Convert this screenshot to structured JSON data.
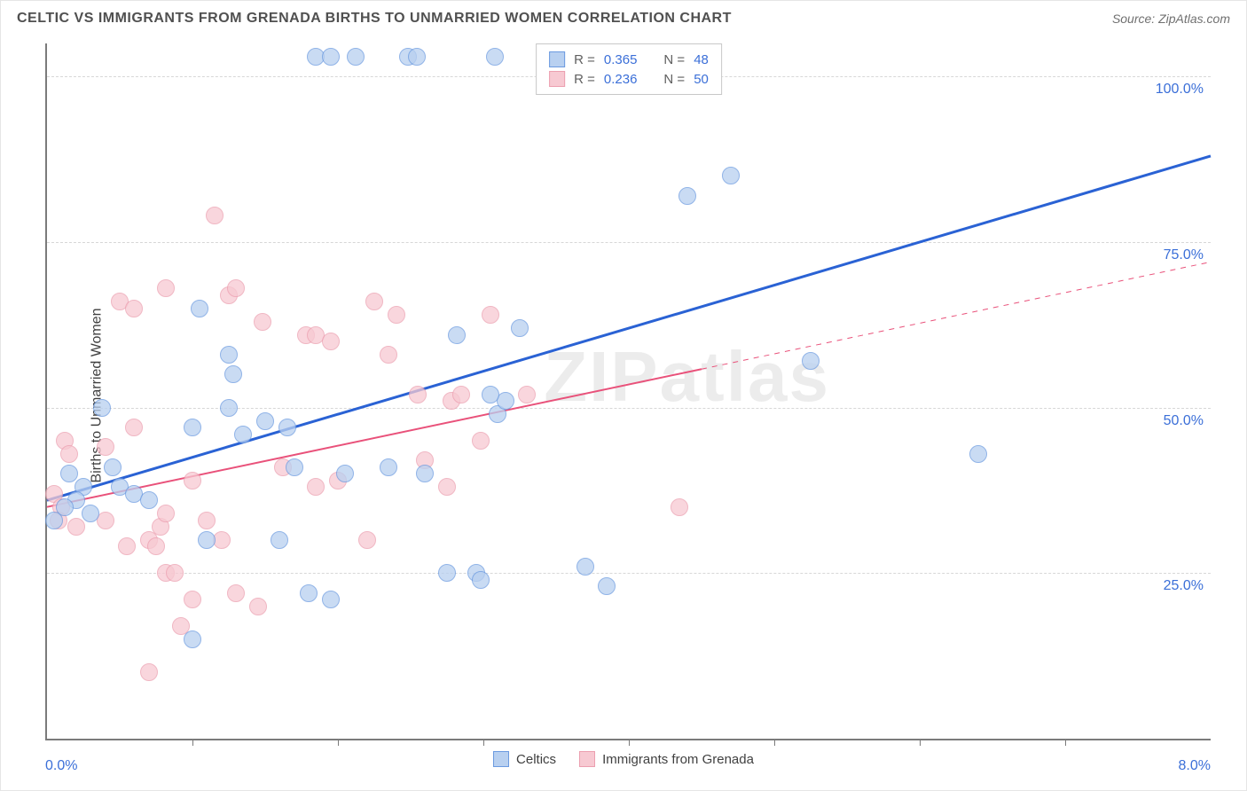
{
  "title": "CELTIC VS IMMIGRANTS FROM GRENADA BIRTHS TO UNMARRIED WOMEN CORRELATION CHART",
  "source": "Source: ZipAtlas.com",
  "watermark": "ZIPatlas",
  "axis": {
    "y_title": "Births to Unmarried Women",
    "x_min_label": "0.0%",
    "x_max_label": "8.0%",
    "xlim": [
      0,
      8
    ],
    "ylim": [
      0,
      105
    ],
    "y_gridlines": [
      {
        "value": 25,
        "label": "25.0%"
      },
      {
        "value": 50,
        "label": "50.0%"
      },
      {
        "value": 75,
        "label": "75.0%"
      },
      {
        "value": 100,
        "label": "100.0%"
      }
    ],
    "x_ticks": [
      1,
      2,
      3,
      4,
      5,
      6,
      7
    ],
    "label_color": "#3b6fd8"
  },
  "colors": {
    "series_a_fill": "#b8d0f0",
    "series_a_stroke": "#6b9ae0",
    "series_b_fill": "#f7c9d2",
    "series_b_stroke": "#ec9fb0",
    "line_a": "#2a62d4",
    "line_b": "#e9517a",
    "grid": "#d7d7d7",
    "axis": "#7b7b7b"
  },
  "legend_top": {
    "rows": [
      {
        "swatch": "a",
        "r_label": "R =",
        "r_value": "0.365",
        "n_label": "N =",
        "n_value": "48"
      },
      {
        "swatch": "b",
        "r_label": "R =",
        "r_value": "0.236",
        "n_label": "N =",
        "n_value": "50"
      }
    ]
  },
  "legend_bottom": {
    "items": [
      {
        "swatch": "a",
        "label": "Celtics"
      },
      {
        "swatch": "b",
        "label": "Immigrants from Grenada"
      }
    ]
  },
  "trend_lines": {
    "a": {
      "x1": 0,
      "y1": 36,
      "x2": 8,
      "y2": 88,
      "color_key": "line_a",
      "width": 3
    },
    "b": {
      "x1": 0,
      "y1": 35,
      "x2": 8,
      "y2": 72,
      "color_key": "line_b",
      "width": 2,
      "solid_to_x": 4.5,
      "dash_from_x": 4.5
    }
  },
  "series": {
    "a": [
      [
        1.85,
        103
      ],
      [
        1.95,
        103
      ],
      [
        2.12,
        103
      ],
      [
        2.48,
        103
      ],
      [
        2.54,
        103
      ],
      [
        3.08,
        103
      ],
      [
        4.7,
        85
      ],
      [
        4.4,
        82
      ],
      [
        1.05,
        65
      ],
      [
        1.28,
        55
      ],
      [
        1.25,
        58
      ],
      [
        2.82,
        61
      ],
      [
        3.25,
        62
      ],
      [
        1.0,
        47
      ],
      [
        1.25,
        50
      ],
      [
        1.35,
        46
      ],
      [
        1.5,
        48
      ],
      [
        1.65,
        47
      ],
      [
        1.7,
        41
      ],
      [
        0.38,
        50
      ],
      [
        0.15,
        40
      ],
      [
        0.25,
        38
      ],
      [
        0.2,
        36
      ],
      [
        0.3,
        34
      ],
      [
        0.12,
        35
      ],
      [
        0.05,
        33
      ],
      [
        0.45,
        41
      ],
      [
        0.5,
        38
      ],
      [
        0.6,
        37
      ],
      [
        0.7,
        36
      ],
      [
        2.05,
        40
      ],
      [
        2.35,
        41
      ],
      [
        2.6,
        40
      ],
      [
        3.1,
        49
      ],
      [
        3.15,
        51
      ],
      [
        3.05,
        52
      ],
      [
        1.1,
        30
      ],
      [
        1.6,
        30
      ],
      [
        1.8,
        22
      ],
      [
        1.95,
        21
      ],
      [
        2.75,
        25
      ],
      [
        2.95,
        25
      ],
      [
        2.98,
        24
      ],
      [
        3.7,
        26
      ],
      [
        3.85,
        23
      ],
      [
        5.25,
        57
      ],
      [
        6.4,
        43
      ],
      [
        1.0,
        15
      ]
    ],
    "b": [
      [
        1.15,
        79
      ],
      [
        0.82,
        68
      ],
      [
        0.5,
        66
      ],
      [
        0.6,
        65
      ],
      [
        1.25,
        67
      ],
      [
        1.3,
        68
      ],
      [
        1.48,
        63
      ],
      [
        1.78,
        61
      ],
      [
        1.85,
        61
      ],
      [
        1.95,
        60
      ],
      [
        2.25,
        66
      ],
      [
        2.4,
        64
      ],
      [
        2.35,
        58
      ],
      [
        2.55,
        52
      ],
      [
        2.78,
        51
      ],
      [
        2.85,
        52
      ],
      [
        3.05,
        64
      ],
      [
        3.3,
        52
      ],
      [
        0.12,
        45
      ],
      [
        0.15,
        43
      ],
      [
        0.05,
        37
      ],
      [
        0.1,
        35
      ],
      [
        0.2,
        32
      ],
      [
        0.08,
        33
      ],
      [
        0.4,
        44
      ],
      [
        0.6,
        47
      ],
      [
        0.4,
        33
      ],
      [
        0.55,
        29
      ],
      [
        0.7,
        30
      ],
      [
        0.75,
        29
      ],
      [
        0.78,
        32
      ],
      [
        0.82,
        34
      ],
      [
        0.82,
        25
      ],
      [
        0.88,
        25
      ],
      [
        0.92,
        17
      ],
      [
        1.0,
        39
      ],
      [
        1.0,
        21
      ],
      [
        0.7,
        10
      ],
      [
        1.1,
        33
      ],
      [
        1.2,
        30
      ],
      [
        1.3,
        22
      ],
      [
        1.45,
        20
      ],
      [
        1.62,
        41
      ],
      [
        1.85,
        38
      ],
      [
        2.0,
        39
      ],
      [
        2.2,
        30
      ],
      [
        2.6,
        42
      ],
      [
        2.75,
        38
      ],
      [
        2.98,
        45
      ],
      [
        4.35,
        35
      ]
    ]
  }
}
